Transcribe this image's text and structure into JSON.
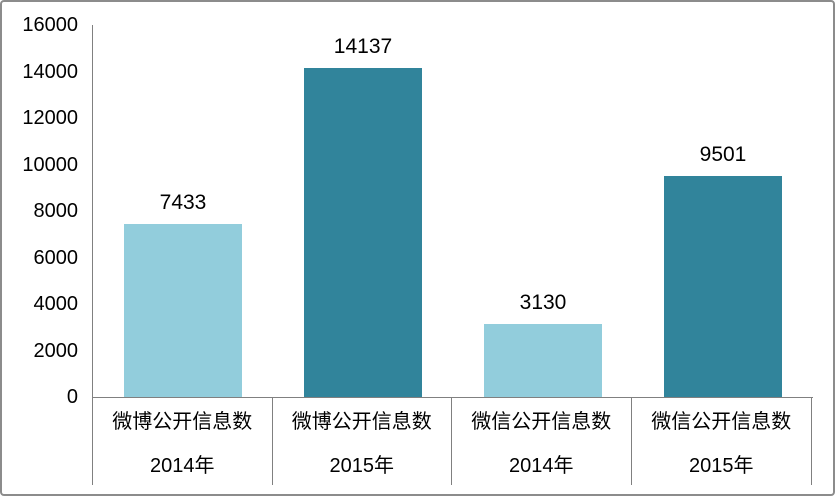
{
  "chart_data": {
    "type": "bar",
    "title": "",
    "xlabel": "",
    "ylabel": "",
    "categories": [
      "微博公开信息数 2014年",
      "微博公开信息数 2015年",
      "微信公开信息数 2014年",
      "微信公开信息数 2015年"
    ],
    "category_lines": [
      [
        "微博公开信息数",
        "2014年"
      ],
      [
        "微博公开信息数",
        "2015年"
      ],
      [
        "微信公开信息数",
        "2014年"
      ],
      [
        "微信公开信息数",
        "2015年"
      ]
    ],
    "values": [
      7433,
      14137,
      3130,
      9501
    ],
    "value_labels": [
      "7433",
      "14137",
      "3130",
      "9501"
    ],
    "bar_colors": [
      "#92CDDC",
      "#31849B",
      "#92CDDC",
      "#31849B"
    ],
    "ylim": [
      0,
      16000
    ],
    "yticks": [
      0,
      2000,
      4000,
      6000,
      8000,
      10000,
      12000,
      14000,
      16000
    ],
    "grid": false,
    "legend": "none"
  },
  "colors": {
    "bar_light": "#92CDDC",
    "bar_dark": "#31849B",
    "axis_line": "#808080",
    "frame_border": "#8C8C8C",
    "text": "#000000",
    "background": "#FFFFFF"
  }
}
